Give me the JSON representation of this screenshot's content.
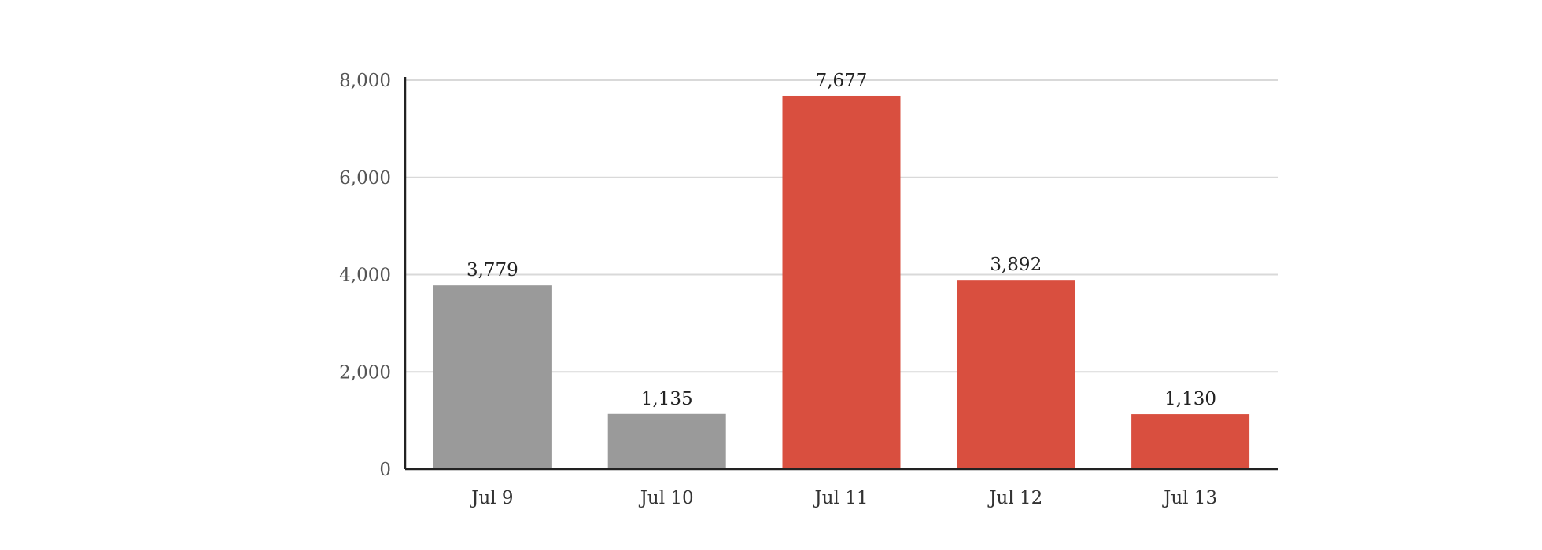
{
  "chart_data": {
    "type": "bar",
    "categories": [
      "Jul 9",
      "Jul 10",
      "Jul 11",
      "Jul 12",
      "Jul 13"
    ],
    "values": [
      3779,
      1135,
      7677,
      3892,
      1130
    ],
    "value_labels": [
      "3,779",
      "1,135",
      "7,677",
      "3,892",
      "1,130"
    ],
    "bar_colors": [
      "#9a9a9a",
      "#9a9a9a",
      "#d94f3f",
      "#d94f3f",
      "#d94f3f"
    ],
    "ylim": [
      0,
      8000
    ],
    "yticks": [
      0,
      2000,
      4000,
      6000,
      8000
    ],
    "ytick_labels": [
      "0",
      "2,000",
      "4,000",
      "6,000",
      "8,000"
    ],
    "grid": true,
    "title": "",
    "xlabel": "",
    "ylabel": ""
  },
  "colors": {
    "gray_bar": "#9a9a9a",
    "accent_bar": "#d94f3f",
    "grid": "#d9d9d9",
    "axis": "#222222"
  }
}
